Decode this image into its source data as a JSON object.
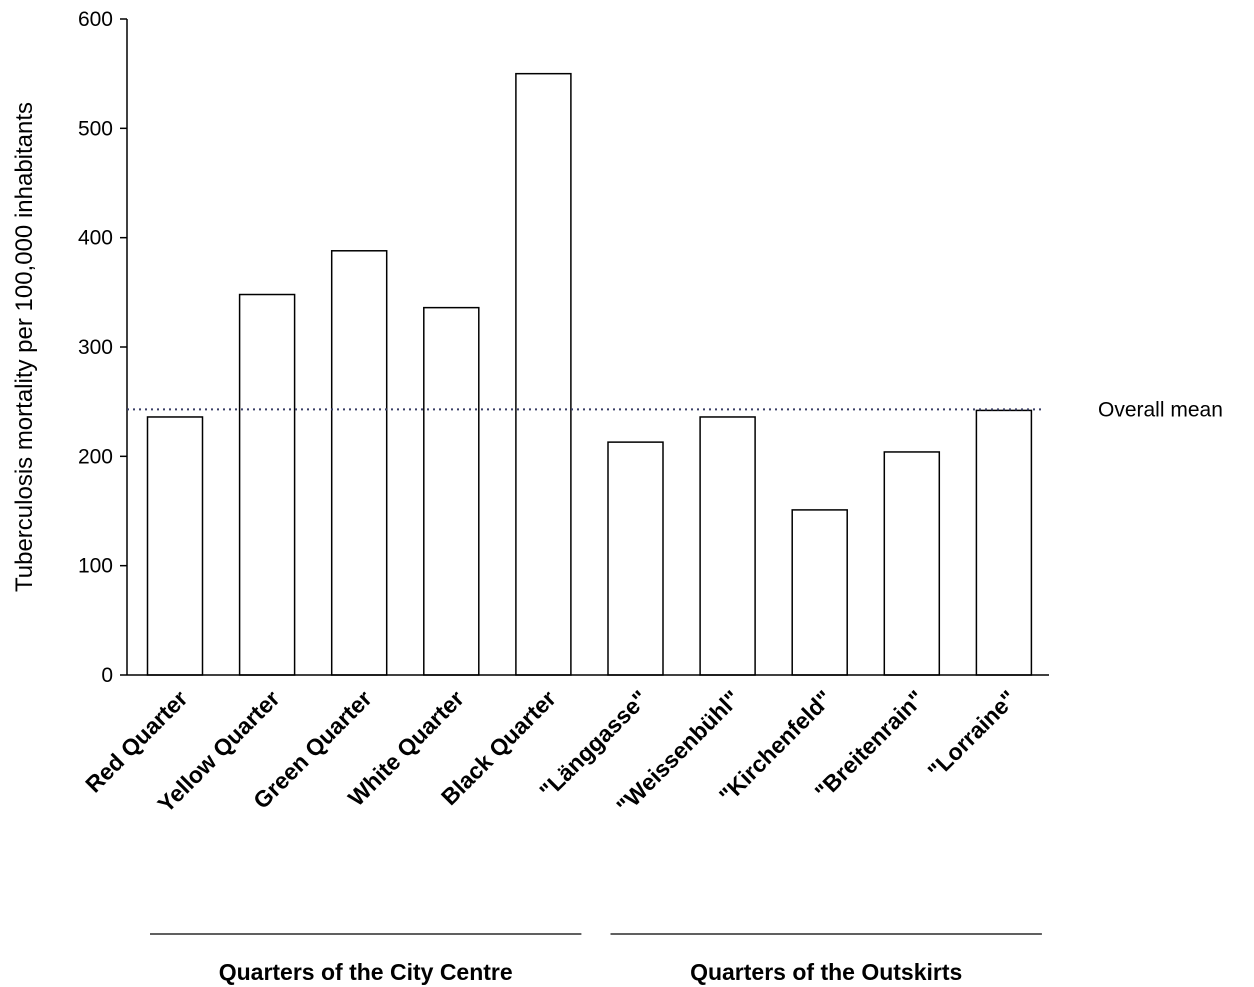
{
  "chart_data": {
    "type": "bar",
    "categories": [
      "Red Quarter",
      "Yellow Quarter",
      "Green Quarter",
      "White Quarter",
      "Black Quarter",
      "\"Länggasse\"",
      "\"Weissenbühl\"",
      "\"Kirchenfeld\"",
      "\"Breitenrain\"",
      "\"Lorraine\""
    ],
    "values": [
      236,
      348,
      388,
      336,
      550,
      213,
      236,
      151,
      204,
      242
    ],
    "ylabel": "Tuberculosis mortality per 100,000 inhabitants",
    "xlabel": "",
    "ylim": [
      0,
      600
    ],
    "yticks": [
      0,
      100,
      200,
      300,
      400,
      500,
      600
    ],
    "reference_line": {
      "value": 243,
      "label": "Overall mean",
      "style": "dotted",
      "color": "#3a3f66"
    },
    "groups": [
      {
        "label": "Quarters of the City Centre",
        "categories": [
          0,
          4
        ]
      },
      {
        "label": "Quarters of the Outskirts",
        "categories": [
          5,
          9
        ]
      }
    ],
    "bar_fill": "#ffffff",
    "bar_stroke": "#000000",
    "grid": false
  }
}
